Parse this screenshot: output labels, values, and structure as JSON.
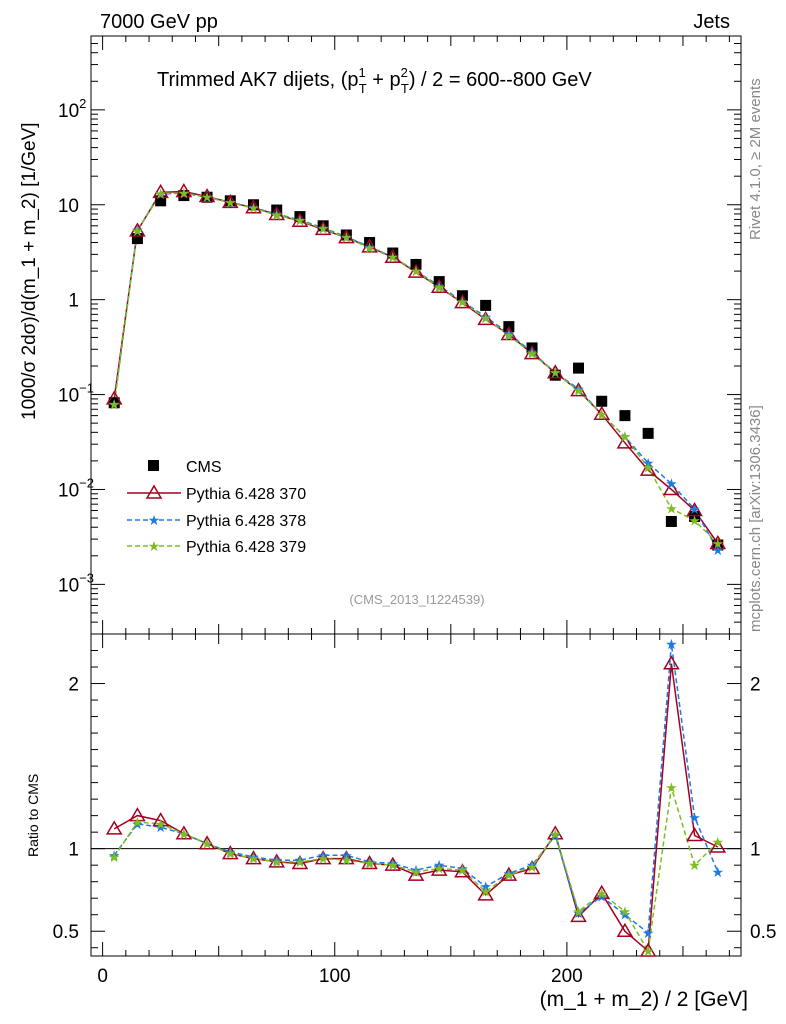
{
  "header": {
    "left": "7000 GeV pp",
    "right": "Jets",
    "title_main": "Trimmed AK7 dijets, (p",
    "title_sup1": "1",
    "title_sub1": "T",
    "title_plus": " + p",
    "title_sup2": "2",
    "title_sub2": "T",
    "title_tail": ") / 2 = 600--800 GeV"
  },
  "side": {
    "rivet": "Rivet 4.1.0, ≥ 2M events",
    "mcplots": "mcplots.cern.ch [arXiv:1306.3436]"
  },
  "analysis_id": "(CMS_2013_I1224539)",
  "colors": {
    "cms": "#000000",
    "p370": "#a50021",
    "p378": "#1e78e6",
    "p379": "#7dbe1e"
  },
  "chart_data": [
    {
      "type": "scatter",
      "panel": "main",
      "yscale": "log",
      "ylabel": "1000/σ   2dσ)/d(m_1 + m_2) [1/GeV]",
      "xlim": [
        -5,
        275
      ],
      "ylim": [
        0.0003,
        600
      ],
      "y_tick_labels": [
        {
          "v": 0.001,
          "base": "10",
          "exp": "−3"
        },
        {
          "v": 0.01,
          "base": "10",
          "exp": "−2"
        },
        {
          "v": 0.1,
          "base": "10",
          "exp": "−1"
        },
        {
          "v": 1,
          "base": "1",
          "exp": ""
        },
        {
          "v": 10,
          "base": "10",
          "exp": ""
        },
        {
          "v": 100,
          "base": "10",
          "exp": "2"
        }
      ],
      "x": [
        5,
        15,
        25,
        35,
        45,
        55,
        65,
        75,
        85,
        95,
        105,
        115,
        125,
        135,
        145,
        155,
        165,
        175,
        185,
        195,
        205,
        215,
        225,
        235,
        245,
        255,
        265
      ],
      "series": [
        {
          "name": "CMS",
          "key": "cms",
          "values": [
            0.082,
            4.4,
            11.0,
            12.5,
            12.0,
            11.0,
            10.0,
            8.8,
            7.5,
            6.0,
            4.8,
            4.0,
            3.1,
            2.35,
            1.55,
            1.1,
            0.87,
            0.52,
            0.31,
            0.16,
            0.19,
            0.085,
            0.06,
            0.039,
            0.0046,
            0.0052,
            0.0026
          ]
        },
        {
          "name": "Pythia 6.428 370",
          "key": "p370",
          "values": [
            0.09,
            5.3,
            13.5,
            13.8,
            12.2,
            10.6,
            9.3,
            7.9,
            6.7,
            5.5,
            4.5,
            3.6,
            2.8,
            1.95,
            1.35,
            0.93,
            0.62,
            0.43,
            0.27,
            0.17,
            0.11,
            0.062,
            0.031,
            0.016,
            0.01,
            0.006,
            0.0027
          ]
        },
        {
          "name": "Pythia 6.428 378",
          "key": "p378",
          "values": [
            0.08,
            5.4,
            13.0,
            13.2,
            12.0,
            10.6,
            9.3,
            8.0,
            6.9,
            5.7,
            4.6,
            3.6,
            2.8,
            2.0,
            1.4,
            0.96,
            0.66,
            0.44,
            0.28,
            0.17,
            0.115,
            0.062,
            0.036,
            0.019,
            0.0115,
            0.0062,
            0.0023
          ]
        },
        {
          "name": "Pythia 6.428 379",
          "key": "p379",
          "values": [
            0.079,
            5.3,
            13.2,
            13.3,
            12.0,
            10.5,
            9.2,
            7.8,
            6.8,
            5.6,
            4.5,
            3.5,
            2.8,
            2.0,
            1.35,
            0.94,
            0.64,
            0.42,
            0.27,
            0.17,
            0.11,
            0.062,
            0.036,
            0.017,
            0.0063,
            0.0047,
            0.0027
          ]
        }
      ]
    },
    {
      "type": "line",
      "panel": "ratio",
      "ylabel": "Ratio to CMS",
      "xlabel": "(m_1 + m_2) / 2 [GeV]",
      "xlim": [
        -5,
        275
      ],
      "ylim": [
        0.35,
        2.3
      ],
      "y_ticks": [
        0.5,
        1,
        2
      ],
      "y_tick_labels": [
        "0.5",
        "1",
        "2"
      ],
      "x_ticks": [
        0,
        100,
        200
      ],
      "x_tick_labels": [
        "0",
        "100",
        "200"
      ],
      "x": [
        5,
        15,
        25,
        35,
        45,
        55,
        65,
        75,
        85,
        95,
        105,
        115,
        125,
        135,
        145,
        155,
        165,
        175,
        185,
        195,
        205,
        215,
        225,
        235,
        245,
        255,
        265
      ],
      "series": [
        {
          "name": "Pythia 6.428 370",
          "key": "p370",
          "values": [
            1.12,
            1.2,
            1.17,
            1.09,
            1.03,
            0.97,
            0.94,
            0.92,
            0.91,
            0.94,
            0.94,
            0.91,
            0.9,
            0.84,
            0.87,
            0.86,
            0.72,
            0.84,
            0.88,
            1.09,
            0.59,
            0.73,
            0.5,
            0.38,
            2.12,
            1.08,
            1.01
          ]
        },
        {
          "name": "Pythia 6.428 378",
          "key": "p378",
          "values": [
            0.96,
            1.15,
            1.13,
            1.09,
            1.03,
            0.98,
            0.95,
            0.93,
            0.93,
            0.96,
            0.96,
            0.92,
            0.91,
            0.87,
            0.9,
            0.88,
            0.77,
            0.85,
            0.9,
            1.08,
            0.61,
            0.71,
            0.6,
            0.49,
            2.24,
            1.19,
            0.86
          ]
        },
        {
          "name": "Pythia 6.428 379",
          "key": "p379",
          "values": [
            0.95,
            1.16,
            1.15,
            1.09,
            1.03,
            0.97,
            0.94,
            0.92,
            0.92,
            0.94,
            0.93,
            0.91,
            0.9,
            0.86,
            0.88,
            0.87,
            0.74,
            0.84,
            0.89,
            1.09,
            0.62,
            0.73,
            0.62,
            0.38,
            1.37,
            0.9,
            1.04
          ]
        }
      ]
    }
  ]
}
